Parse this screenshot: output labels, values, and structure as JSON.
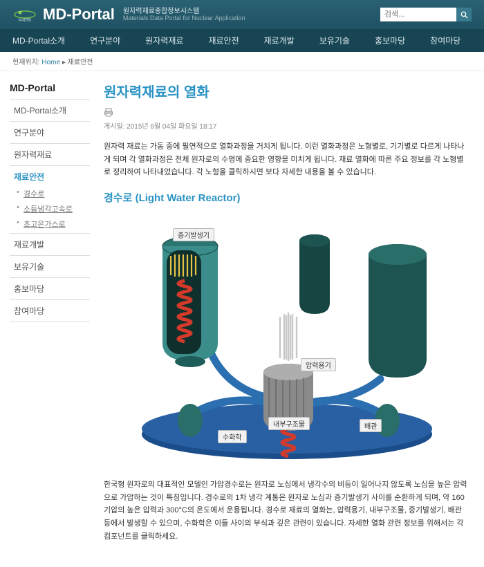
{
  "header": {
    "brand": "MD-Portal",
    "sub_kr": "원자력재료종합정보시스템",
    "sub_en": "Materials Data Portal for Nuclear Application",
    "search_placeholder": "검색..."
  },
  "nav": [
    "MD-Portal소개",
    "연구분야",
    "원자력재료",
    "재료안전",
    "재료개발",
    "보유기술",
    "홍보마당",
    "참여마당"
  ],
  "breadcrumb": {
    "label": "현재위치:",
    "home": "Home",
    "current": "재료안전"
  },
  "sidebar": {
    "title": "MD-Portal",
    "items": [
      {
        "label": "MD-Portal소개"
      },
      {
        "label": "연구분야"
      },
      {
        "label": "원자력재료"
      },
      {
        "label": "재료안전",
        "active": true,
        "children": [
          "경수로",
          "소듐냉각고속로",
          "초고온가스로"
        ]
      },
      {
        "label": "재료개발"
      },
      {
        "label": "보유기술"
      },
      {
        "label": "홍보마당"
      },
      {
        "label": "참여마당"
      }
    ]
  },
  "article": {
    "title": "원자력재료의 열화",
    "date": "게시일: 2015년 8월 04일 화요일 18:17",
    "intro": "원자력 재료는 가동 중에 필연적으로 열화과정을 거치게 됩니다. 이런 열화과정은 노형별로, 기기별로 다르게 나타나게 되며 각 열화과정은 전체 원자로의 수명에 중요한 영향을 미치게 됩니다. 재료 열화에 따른 주요 정보를 각 노형별로 정리하여 나타내었습니다. 각 노형을 클릭하시면 보다 자세한 내용을 볼 수 있습니다.",
    "section_title": "경수로 (Light Water Reactor)",
    "body": "한국형 원자로의 대표적인 모델인 가압경수로는 원자로 노심에서 냉각수의 비등이 일어나지 않도록 노심을 높은 압력으로 가압하는 것이 특징입니다. 경수로의 1차 냉각 계통은 원자로 노심과 증기발생기 사이를 순환하게 되며, 약 160기압의 높은 압력과 300°C의 온도에서 운용됩니다. 경수로 재료의 열화는, 압력용기, 내부구조물, 증기발생기, 배관 등에서 발생할 수 있으며, 수화학은 이들 사이의 부식과 깊은 관련이 있습니다. 자세한 열화 관련 정보를 위해서는 각 컴포넌트를 클릭하세요."
  },
  "diagram": {
    "labels": {
      "steam_gen": "증기발생기",
      "pressure_vessel": "압력용기",
      "internals": "내부구조물",
      "water_chem": "수화학",
      "piping": "배관"
    },
    "colors": {
      "sg_body": "#3a8d8a",
      "sg_dark": "#174542",
      "rod": "#d0d0d0",
      "coil_red": "#d43a2a",
      "blue_base": "#1a4d8a",
      "yellow": "#e6c246"
    }
  }
}
